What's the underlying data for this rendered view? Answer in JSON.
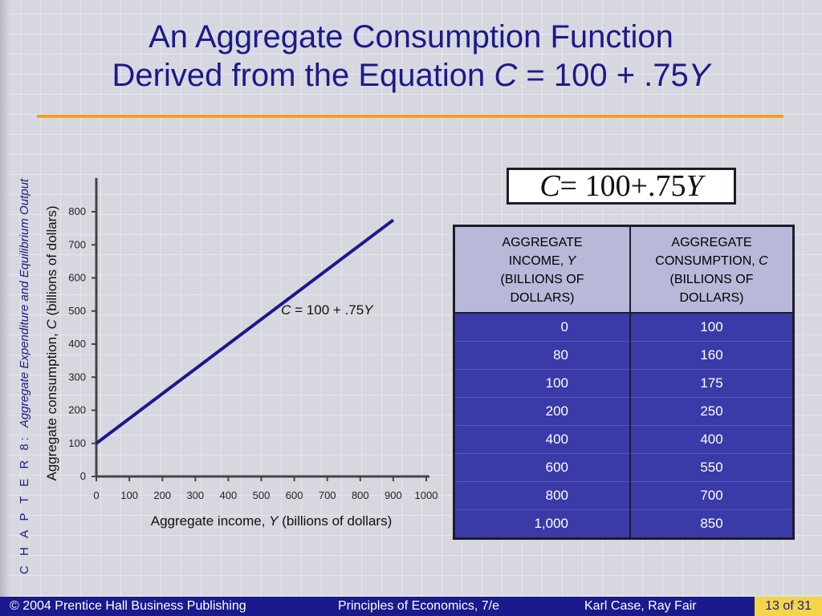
{
  "slide": {
    "title_line1": "An Aggregate Consumption Function",
    "title_line2_pre": "Derived from the Equation ",
    "title_C": "C",
    "title_mid": " = 100 + .75",
    "title_Y": "Y",
    "side_chapter": "C H A P T E R  8:",
    "side_topic": "Aggregate Expenditure and Equilibrium Output"
  },
  "formula": {
    "C": "C",
    "body": " = 100+.75",
    "Y": "Y"
  },
  "chart_data": {
    "type": "line",
    "series": [
      {
        "x": [
          0,
          900
        ],
        "y": [
          100,
          775
        ]
      }
    ],
    "annotation": {
      "pre": "C",
      "mid": " = 100 + .75",
      "post": "Y",
      "at_x": 560,
      "at_y": 490
    },
    "xlabel_pre": "Aggregate income, ",
    "xlabel_var": "Y",
    "xlabel_post": " (billions of dollars)",
    "ylabel_pre": "Aggregate consumption, ",
    "ylabel_var": "C",
    "ylabel_post": " (billions of dollars)",
    "xticks": [
      "0",
      "100",
      "200",
      "300",
      "400",
      "500",
      "600",
      "700",
      "800",
      "900",
      "1000"
    ],
    "yticks": [
      "0",
      "100",
      "200",
      "300",
      "400",
      "500",
      "600",
      "700",
      "800"
    ],
    "xlim": [
      0,
      1000
    ],
    "ylim": [
      0,
      800
    ],
    "line_color": "#1a1a8c"
  },
  "table": {
    "col1_header": [
      "AGGREGATE",
      "INCOME, ",
      "Y",
      "(BILLIONS OF",
      "DOLLARS)"
    ],
    "col2_header": [
      "AGGREGATE",
      "CONSUMPTION, ",
      "C",
      "(BILLIONS OF",
      "DOLLARS)"
    ],
    "rows": [
      [
        "0",
        "100"
      ],
      [
        "80",
        "160"
      ],
      [
        "100",
        "175"
      ],
      [
        "200",
        "250"
      ],
      [
        "400",
        "400"
      ],
      [
        "600",
        "550"
      ],
      [
        "800",
        "700"
      ],
      [
        "1,000",
        "850"
      ]
    ]
  },
  "footer": {
    "copyright": "© 2004 Prentice Hall Business Publishing",
    "book": "Principles of Economics, 7/e",
    "authors": "Karl Case, Ray Fair",
    "page": "13 of 31"
  },
  "colors": {
    "accent": "#f0a020",
    "brand": "#1a1a8c",
    "table_body": "#3a3aa8",
    "page_box": "#f5d44a"
  }
}
